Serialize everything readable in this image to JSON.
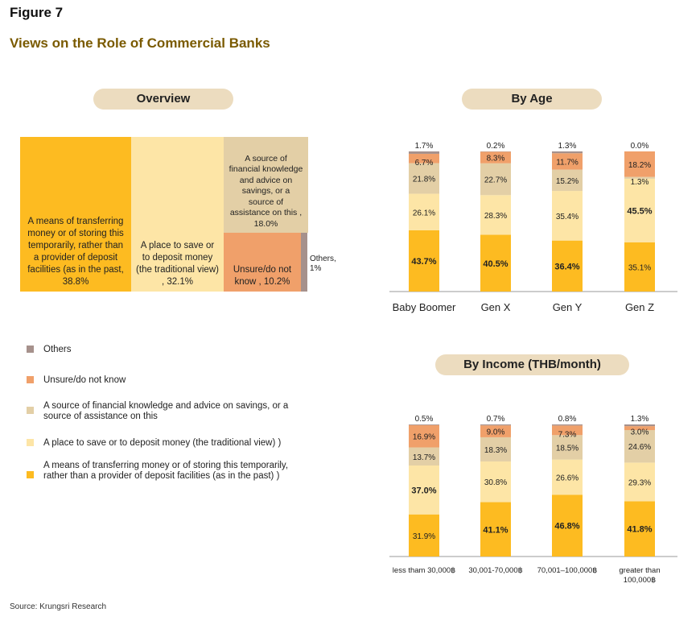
{
  "figure_label": "Figure 7",
  "title": "Views on the Role of Commercial Banks",
  "source": "Source: Krungsri Research",
  "colors": {
    "others": "#a6918c",
    "unsure": "#f0a06a",
    "knowledge": "#e3cfa6",
    "save": "#fde5a6",
    "transfer": "#fdbb21",
    "pill": "#ecdcbf"
  },
  "overview": {
    "heading": "Overview",
    "cells": [
      {
        "key": "transfer",
        "label": "A means of transferring money or of storing this temporarily, rather than a provider of deposit facilities (as in the past, 38.8%",
        "value": 38.8
      },
      {
        "key": "save",
        "label": "A place to save or to deposit money (the traditional view) , 32.1%",
        "value": 32.1
      },
      {
        "key": "knowledge",
        "label": "A source of financial knowledge and advice on savings, or a source of assistance on this , 18.0%",
        "value": 18.0
      },
      {
        "key": "unsure",
        "label": "Unsure/do not know , 10.2%",
        "value": 10.2
      },
      {
        "key": "others",
        "label": "Others, 1%",
        "value": 1.0
      }
    ]
  },
  "legend": [
    {
      "key": "others",
      "label": "Others"
    },
    {
      "key": "unsure",
      "label": "Unsure/do not know"
    },
    {
      "key": "knowledge",
      "label": "A source of financial knowledge and advice on savings, or a source of assistance on this"
    },
    {
      "key": "save",
      "label": "A place to save or to deposit money (the traditional view) )"
    },
    {
      "key": "transfer",
      "label": "A means of transferring money or of storing this temporarily, rather than a provider of deposit facilities (as in the past) )"
    }
  ],
  "chart_data": [
    {
      "type": "bar",
      "stacked": true,
      "title": "By Age",
      "categories": [
        "Baby Boomer",
        "Gen X",
        "Gen Y",
        "Gen Z"
      ],
      "series": [
        {
          "key": "transfer",
          "values": [
            43.7,
            40.5,
            36.4,
            35.1
          ],
          "labels": [
            "43.7%",
            "40.5%",
            "36.4%",
            "35.1%"
          ],
          "bold": [
            true,
            true,
            true,
            false
          ]
        },
        {
          "key": "save",
          "values": [
            26.1,
            28.3,
            35.4,
            45.5
          ],
          "labels": [
            "26.1%",
            "28.3%",
            "35.4%",
            "45.5%"
          ],
          "bold": [
            false,
            false,
            false,
            true
          ]
        },
        {
          "key": "knowledge",
          "values": [
            21.8,
            22.7,
            15.2,
            1.3
          ],
          "labels": [
            "21.8%",
            "22.7%",
            "15.2%",
            "1.3%"
          ],
          "bold": [
            false,
            false,
            false,
            false
          ]
        },
        {
          "key": "unsure",
          "values": [
            6.7,
            8.3,
            11.7,
            18.2
          ],
          "labels": [
            "6.7%",
            "8.3%",
            "11.7%",
            "18.2%"
          ],
          "bold": [
            false,
            false,
            false,
            false
          ]
        },
        {
          "key": "others",
          "values": [
            1.7,
            0.2,
            1.3,
            0.0
          ],
          "labels": [
            "1.7%",
            "0.2%",
            "1.3%",
            "0.0%"
          ],
          "bold": [
            false,
            false,
            false,
            false
          ]
        }
      ],
      "ylim": [
        0,
        100
      ]
    },
    {
      "type": "bar",
      "stacked": true,
      "title": "By Income (THB/month)",
      "categories": [
        "less tham 30,000฿",
        "30,001-70,000฿",
        "70,001–100,000฿",
        "greater than 100,000฿"
      ],
      "series": [
        {
          "key": "transfer",
          "values": [
            31.9,
            41.1,
            46.8,
            41.8
          ],
          "labels": [
            "31.9%",
            "41.1%",
            "46.8%",
            "41.8%"
          ],
          "bold": [
            false,
            true,
            true,
            true
          ]
        },
        {
          "key": "save",
          "values": [
            37.0,
            30.8,
            26.6,
            29.3
          ],
          "labels": [
            "37.0%",
            "30.8%",
            "26.6%",
            "29.3%"
          ],
          "bold": [
            true,
            false,
            false,
            false
          ]
        },
        {
          "key": "knowledge",
          "values": [
            13.7,
            18.3,
            18.5,
            24.6
          ],
          "labels": [
            "13.7%",
            "18.3%",
            "18.5%",
            "24.6%"
          ],
          "bold": [
            false,
            false,
            false,
            false
          ]
        },
        {
          "key": "unsure",
          "values": [
            16.9,
            9.0,
            7.3,
            3.0
          ],
          "labels": [
            "16.9%",
            "9.0%",
            "7.3%",
            "3.0%"
          ],
          "bold": [
            false,
            false,
            false,
            false
          ]
        },
        {
          "key": "others",
          "values": [
            0.5,
            0.7,
            0.8,
            1.3
          ],
          "labels": [
            "0.5%",
            "0.7%",
            "0.8%",
            "1.3%"
          ],
          "bold": [
            false,
            false,
            false,
            false
          ]
        }
      ],
      "ylim": [
        0,
        100
      ]
    }
  ]
}
